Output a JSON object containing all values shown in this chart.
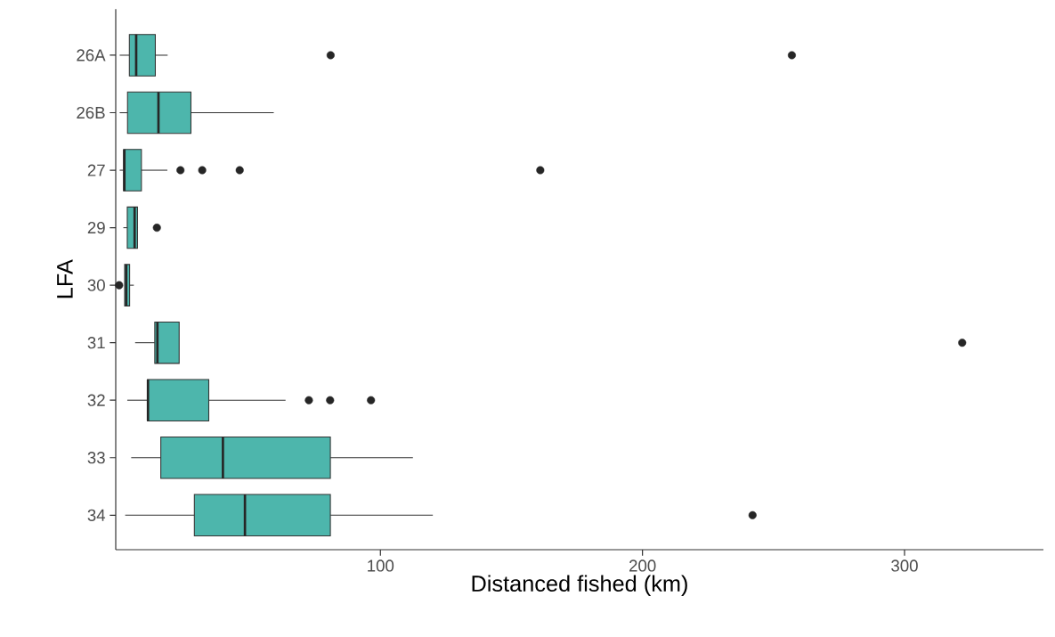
{
  "chart_data": {
    "type": "box",
    "orientation": "horizontal",
    "xlabel": "Distanced fished (km)",
    "ylabel": "LFA",
    "categories": [
      "26A",
      "26B",
      "27",
      "29",
      "30",
      "31",
      "32",
      "33",
      "34"
    ],
    "color": "#4db6ac",
    "boxes": [
      {
        "low": 0.5,
        "q1": 4.2,
        "median": 6.8,
        "q3": 14.1,
        "high": 18.8,
        "outliers": [
          81,
          257
        ]
      },
      {
        "low": 0.5,
        "q1": 3.5,
        "median": 15.3,
        "q3": 27.7,
        "high": 59.3
      },
      {
        "low": 0.5,
        "q1": 2,
        "median": 2.3,
        "q3": 8.8,
        "high": 18.7,
        "outliers": [
          23.7,
          32,
          46.3,
          161
        ]
      },
      {
        "low": 1.9,
        "q1": 3.4,
        "median": 6.2,
        "q3": 7.3,
        "high": 7.5,
        "outliers": [
          14.7
        ]
      },
      {
        "low": 2.4,
        "q1": 2.4,
        "median": 3,
        "q3": 4.3,
        "high": 5.9,
        "outliers": [
          0.3
        ]
      },
      {
        "low": 6.4,
        "q1": 13.9,
        "median": 14.9,
        "q3": 23.2,
        "high": 23.2,
        "outliers": [
          322
        ]
      },
      {
        "low": 3.4,
        "q1": 11.1,
        "median": 11.3,
        "q3": 34.5,
        "high": 63.8,
        "outliers": [
          72.7,
          80.8,
          96.4
        ]
      },
      {
        "low": 4.9,
        "q1": 16.2,
        "median": 39.9,
        "q3": 80.9,
        "high": 112.4
      },
      {
        "low": 2.6,
        "q1": 29,
        "median": 48.3,
        "q3": 80.9,
        "high": 120,
        "outliers": [
          242
        ]
      }
    ],
    "xlim": [
      -1,
      353
    ],
    "xticks": [
      100,
      200,
      300
    ]
  }
}
